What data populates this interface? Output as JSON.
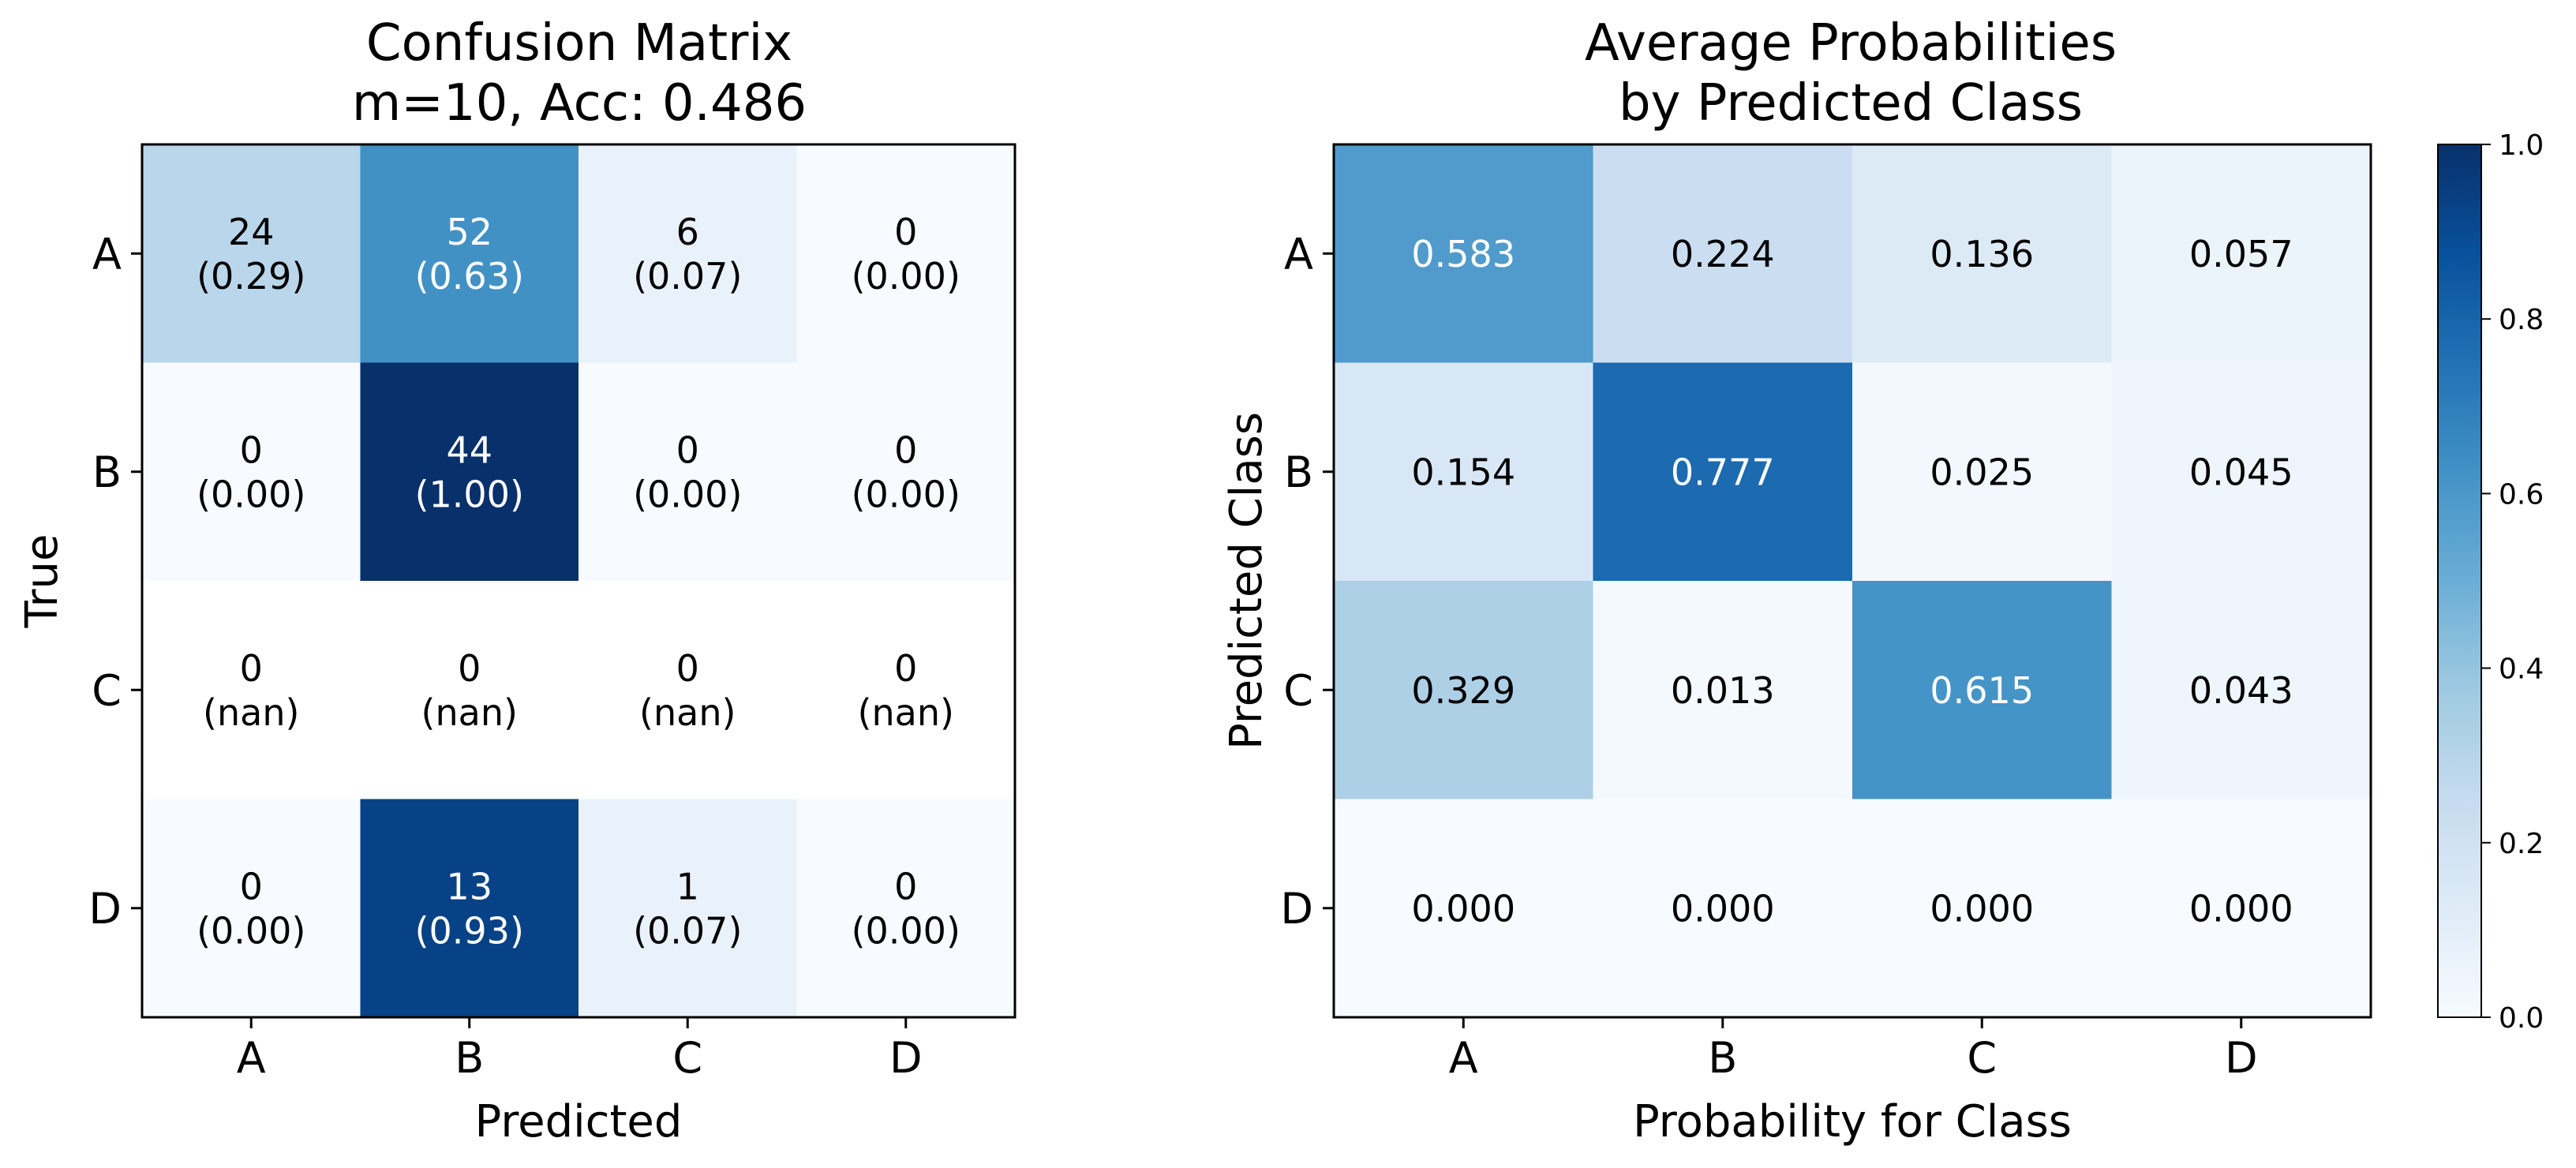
{
  "chart_data": [
    {
      "type": "heatmap",
      "title_lines": [
        "Confusion Matrix",
        "m=10, Acc: 0.486"
      ],
      "xlabel": "Predicted",
      "ylabel": "True",
      "x_categories": [
        "A",
        "B",
        "C",
        "D"
      ],
      "y_categories": [
        "A",
        "B",
        "C",
        "D"
      ],
      "counts": [
        [
          24,
          52,
          6,
          0
        ],
        [
          0,
          44,
          0,
          0
        ],
        [
          0,
          0,
          0,
          0
        ],
        [
          0,
          13,
          1,
          0
        ]
      ],
      "cell_labels": [
        [
          "24\n(0.29)",
          "52\n(0.63)",
          "6\n(0.07)",
          "0\n(0.00)"
        ],
        [
          "0\n(0.00)",
          "44\n(1.00)",
          "0\n(0.00)",
          "0\n(0.00)"
        ],
        [
          "0\n(nan)",
          "0\n(nan)",
          "0\n(nan)",
          "0\n(nan)"
        ],
        [
          "0\n(0.00)",
          "13\n(0.93)",
          "1\n(0.07)",
          "0\n(0.00)"
        ]
      ],
      "color_values": [
        [
          0.29,
          0.63,
          0.07,
          0.0
        ],
        [
          0.0,
          1.0,
          0.0,
          0.0
        ],
        [
          null,
          null,
          null,
          null
        ],
        [
          0.0,
          0.93,
          0.07,
          0.0
        ]
      ],
      "colormap": "Blues",
      "vmin": 0,
      "vmax": 1
    },
    {
      "type": "heatmap",
      "title_lines": [
        "Average Probabilities",
        "by Predicted Class"
      ],
      "xlabel": "Probability for Class",
      "ylabel": "Predicted Class",
      "x_categories": [
        "A",
        "B",
        "C",
        "D"
      ],
      "y_categories": [
        "A",
        "B",
        "C",
        "D"
      ],
      "values": [
        [
          0.583,
          0.224,
          0.136,
          0.057
        ],
        [
          0.154,
          0.777,
          0.025,
          0.045
        ],
        [
          0.329,
          0.013,
          0.615,
          0.043
        ],
        [
          0.0,
          0.0,
          0.0,
          0.0
        ]
      ],
      "cell_labels": [
        [
          "0.583",
          "0.224",
          "0.136",
          "0.057"
        ],
        [
          "0.154",
          "0.777",
          "0.025",
          "0.045"
        ],
        [
          "0.329",
          "0.013",
          "0.615",
          "0.043"
        ],
        [
          "0.000",
          "0.000",
          "0.000",
          "0.000"
        ]
      ],
      "colormap": "Blues",
      "vmin": 0,
      "vmax": 1,
      "colorbar": {
        "ticks": [
          0.0,
          0.2,
          0.4,
          0.6,
          0.8,
          1.0
        ],
        "tick_labels": [
          "0.0",
          "0.2",
          "0.4",
          "0.6",
          "0.8",
          "1.0"
        ]
      }
    }
  ]
}
